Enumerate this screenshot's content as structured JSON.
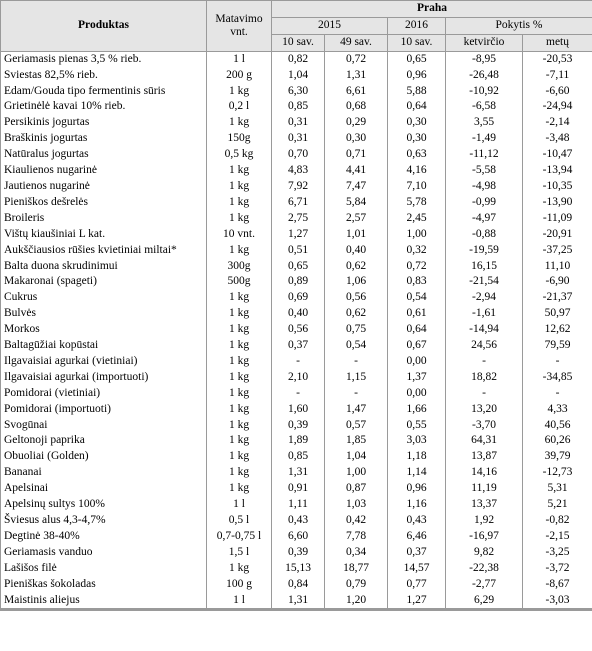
{
  "headers": {
    "product": "Produktas",
    "unit": "Matavimo vnt.",
    "city": "Praha",
    "year_2015": "2015",
    "year_2016": "2016",
    "change": "Pokytis %",
    "week10_2015": "10 sav.",
    "week49_2015": "49 sav.",
    "week10_2016": "10 sav.",
    "quarter": "ketvirčio",
    "year": "metų"
  },
  "rows": [
    [
      "Geriamasis pienas 3,5 % rieb.",
      "1 l",
      "0,82",
      "0,72",
      "0,65",
      "-8,95",
      "-20,53"
    ],
    [
      "Sviestas 82,5% rieb.",
      "200 g",
      "1,04",
      "1,31",
      "0,96",
      "-26,48",
      "-7,11"
    ],
    [
      "Edam/Gouda tipo fermentinis sūris",
      "1 kg",
      "6,30",
      "6,61",
      "5,88",
      "-10,92",
      "-6,60"
    ],
    [
      "Grietinėlė kavai 10% rieb.",
      "0,2 l",
      "0,85",
      "0,68",
      "0,64",
      "-6,58",
      "-24,94"
    ],
    [
      "Persikinis jogurtas",
      "1 kg",
      "0,31",
      "0,29",
      "0,30",
      "3,55",
      "-2,14"
    ],
    [
      "Braškinis jogurtas",
      "150g",
      "0,31",
      "0,30",
      "0,30",
      "-1,49",
      "-3,48"
    ],
    [
      "Natūralus jogurtas",
      "0,5 kg",
      "0,70",
      "0,71",
      "0,63",
      "-11,12",
      "-10,47"
    ],
    [
      "Kiaulienos nugarinė",
      "1 kg",
      "4,83",
      "4,41",
      "4,16",
      "-5,58",
      "-13,94"
    ],
    [
      "Jautienos nugarinė",
      "1 kg",
      "7,92",
      "7,47",
      "7,10",
      "-4,98",
      "-10,35"
    ],
    [
      "Pieniškos dešrelės",
      "1 kg",
      "6,71",
      "5,84",
      "5,78",
      "-0,99",
      "-13,90"
    ],
    [
      "Broileris",
      "1 kg",
      "2,75",
      "2,57",
      "2,45",
      "-4,97",
      "-11,09"
    ],
    [
      "Vištų kiaušiniai L kat.",
      "10 vnt.",
      "1,27",
      "1,01",
      "1,00",
      "-0,88",
      "-20,91"
    ],
    [
      "Aukščiausios rūšies kvietiniai miltai*",
      "1 kg",
      "0,51",
      "0,40",
      "0,32",
      "-19,59",
      "-37,25"
    ],
    [
      "Balta duona skrudinimui",
      "300g",
      "0,65",
      "0,62",
      "0,72",
      "16,15",
      "11,10"
    ],
    [
      "Makaronai (spageti)",
      "500g",
      "0,89",
      "1,06",
      "0,83",
      "-21,54",
      "-6,90"
    ],
    [
      "Cukrus",
      "1 kg",
      "0,69",
      "0,56",
      "0,54",
      "-2,94",
      "-21,37"
    ],
    [
      "Bulvės",
      "1 kg",
      "0,40",
      "0,62",
      "0,61",
      "-1,61",
      "50,97"
    ],
    [
      "Morkos",
      "1 kg",
      "0,56",
      "0,75",
      "0,64",
      "-14,94",
      "12,62"
    ],
    [
      "Baltagūžiai kopūstai",
      "1 kg",
      "0,37",
      "0,54",
      "0,67",
      "24,56",
      "79,59"
    ],
    [
      "Ilgavaisiai agurkai (vietiniai)",
      "1 kg",
      "-",
      "-",
      "0,00",
      "-",
      "-"
    ],
    [
      "Ilgavaisiai agurkai (importuoti)",
      "1 kg",
      "2,10",
      "1,15",
      "1,37",
      "18,82",
      "-34,85"
    ],
    [
      "Pomidorai (vietiniai)",
      "1 kg",
      "-",
      "-",
      "0,00",
      "-",
      "-"
    ],
    [
      "Pomidorai (importuoti)",
      "1 kg",
      "1,60",
      "1,47",
      "1,66",
      "13,20",
      "4,33"
    ],
    [
      "Svogūnai",
      "1 kg",
      "0,39",
      "0,57",
      "0,55",
      "-3,70",
      "40,56"
    ],
    [
      "Geltonoji paprika",
      "1 kg",
      "1,89",
      "1,85",
      "3,03",
      "64,31",
      "60,26"
    ],
    [
      "Obuoliai (Golden)",
      "1 kg",
      "0,85",
      "1,04",
      "1,18",
      "13,87",
      "39,79"
    ],
    [
      "Bananai",
      "1 kg",
      "1,31",
      "1,00",
      "1,14",
      "14,16",
      "-12,73"
    ],
    [
      "Apelsinai",
      "1 kg",
      "0,91",
      "0,87",
      "0,96",
      "11,19",
      "5,31"
    ],
    [
      "Apelsinų sultys 100%",
      "1 l",
      "1,11",
      "1,03",
      "1,16",
      "13,37",
      "5,21"
    ],
    [
      "Šviesus alus 4,3-4,7%",
      "0,5 l",
      "0,43",
      "0,42",
      "0,43",
      "1,92",
      "-0,82"
    ],
    [
      "Degtinė 38-40%",
      "0,7-0,75 l",
      "6,60",
      "7,78",
      "6,46",
      "-16,97",
      "-2,15"
    ],
    [
      "Geriamasis vanduo",
      "1,5 l",
      "0,39",
      "0,34",
      "0,37",
      "9,82",
      "-3,25"
    ],
    [
      "Lašišos filė",
      "1 kg",
      "15,13",
      "18,77",
      "14,57",
      "-22,38",
      "-3,72"
    ],
    [
      "Pieniškas šokoladas",
      "100 g",
      "0,84",
      "0,79",
      "0,77",
      "-2,77",
      "-8,67"
    ],
    [
      "Maistinis aliejus",
      "1 l",
      "1,31",
      "1,20",
      "1,27",
      "6,29",
      "-3,03"
    ]
  ]
}
